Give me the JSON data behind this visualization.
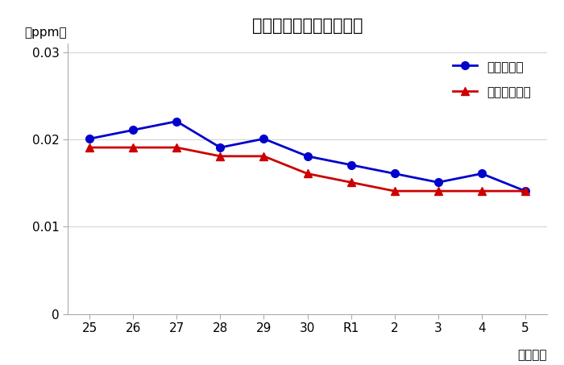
{
  "title": "「二酸化窒素経年変化」",
  "title_text": "【二酸化窒素経年変化】",
  "xlabel": "（年度）",
  "ylabel": "（ppm）",
  "x_labels": [
    "25",
    "26",
    "27",
    "28",
    "29",
    "30",
    "R1",
    "2",
    "3",
    "4",
    "5"
  ],
  "series1_label": "区内平均値",
  "series1_color": "#0000CC",
  "series1_values": [
    0.0201,
    0.0211,
    0.0221,
    0.0191,
    0.0201,
    0.0181,
    0.0171,
    0.0161,
    0.0151,
    0.0161,
    0.0141
  ],
  "series2_label": "都区部平均値",
  "series2_color": "#CC0000",
  "series2_values": [
    0.0191,
    0.0191,
    0.0191,
    0.0181,
    0.0181,
    0.0161,
    0.0151,
    0.0141,
    0.0141,
    0.0141,
    0.0141
  ],
  "ylim": [
    0,
    0.031
  ],
  "yticks": [
    0,
    0.01,
    0.02,
    0.03
  ],
  "background_color": "#ffffff",
  "title_fontsize": 15,
  "legend_fontsize": 11,
  "tick_fontsize": 11,
  "axis_label_fontsize": 11
}
